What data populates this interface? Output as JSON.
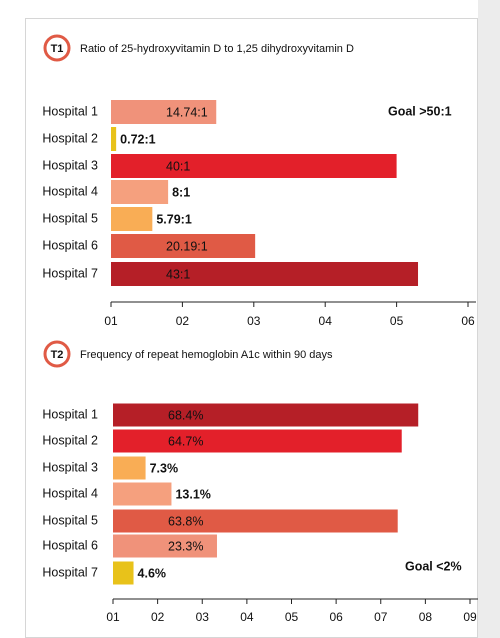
{
  "chart_data": [
    {
      "type": "bar",
      "orientation": "horizontal",
      "badge": "T1",
      "title": "Ratio of 25-hydroxyvitamin D to 1,25 dihydroxyvitamin D",
      "annotation": "Goal  >50:1",
      "categories": [
        "Hospital 1",
        "Hospital 2",
        "Hospital 3",
        "Hospital 4",
        "Hospital 5",
        "Hospital 6",
        "Hospital 7"
      ],
      "values": [
        14.74,
        0.72,
        40,
        8,
        5.79,
        20.19,
        43
      ],
      "value_labels": [
        "14.74:1",
        "0.72:1",
        "40:1",
        "8:1",
        "5.79:1",
        "20.19:1",
        "43:1"
      ],
      "colors": [
        "#f0927a",
        "#e8c21a",
        "#e3202a",
        "#f5a07e",
        "#f9ad55",
        "#e05a45",
        "#b51f27"
      ],
      "xlim": [
        0,
        50
      ],
      "xticks": [
        {
          "value": 0,
          "label": "01"
        },
        {
          "value": 10,
          "label": "02"
        },
        {
          "value": 20,
          "label": "03"
        },
        {
          "value": 30,
          "label": "04"
        },
        {
          "value": 40,
          "label": "05"
        },
        {
          "value": 50,
          "label": "06"
        }
      ]
    },
    {
      "type": "bar",
      "orientation": "horizontal",
      "badge": "T2",
      "title": "Frequency of repeat hemoglobin A1c within 90 days",
      "annotation": "Goal  <2%",
      "categories": [
        "Hospital 1",
        "Hospital 2",
        "Hospital 3",
        "Hospital 4",
        "Hospital 5",
        "Hospital 6",
        "Hospital 7"
      ],
      "values": [
        68.4,
        64.7,
        7.3,
        13.1,
        63.8,
        23.3,
        4.6
      ],
      "value_labels": [
        "68.4%",
        "64.7%",
        "7.3%",
        "13.1%",
        "63.8%",
        "23.3%",
        "4.6%"
      ],
      "colors": [
        "#b51f27",
        "#e3202a",
        "#f9ad55",
        "#f5a07e",
        "#e05a45",
        "#f0927a",
        "#e8c21a"
      ],
      "xlim": [
        0,
        80
      ],
      "xticks": [
        {
          "value": 0,
          "label": "01"
        },
        {
          "value": 10,
          "label": "02"
        },
        {
          "value": 20,
          "label": "03"
        },
        {
          "value": 30,
          "label": "04"
        },
        {
          "value": 40,
          "label": "05"
        },
        {
          "value": 50,
          "label": "06"
        },
        {
          "value": 60,
          "label": "07"
        },
        {
          "value": 70,
          "label": "08"
        },
        {
          "value": 80,
          "label": "09"
        }
      ]
    }
  ]
}
